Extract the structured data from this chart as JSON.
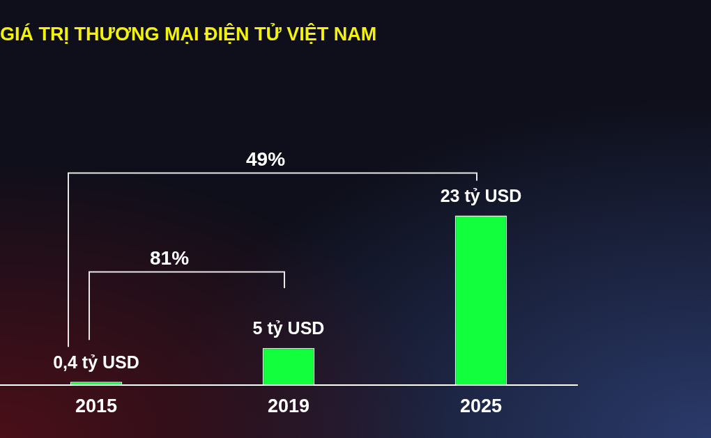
{
  "chart_data": {
    "type": "bar",
    "title": "GIÁ TRỊ THƯƠNG MẠI ĐIỆN TỬ VIỆT NAM",
    "categories": [
      "2015",
      "2019",
      "2025"
    ],
    "values": [
      0.4,
      5,
      23
    ],
    "value_labels": [
      "0,4 tỷ USD",
      "5 tỷ USD",
      "23 tỷ USD"
    ],
    "color": "#11ff3c",
    "annotations": [
      "49%",
      "81%"
    ],
    "grid": false,
    "legend": false,
    "tick_labels": "x"
  }
}
